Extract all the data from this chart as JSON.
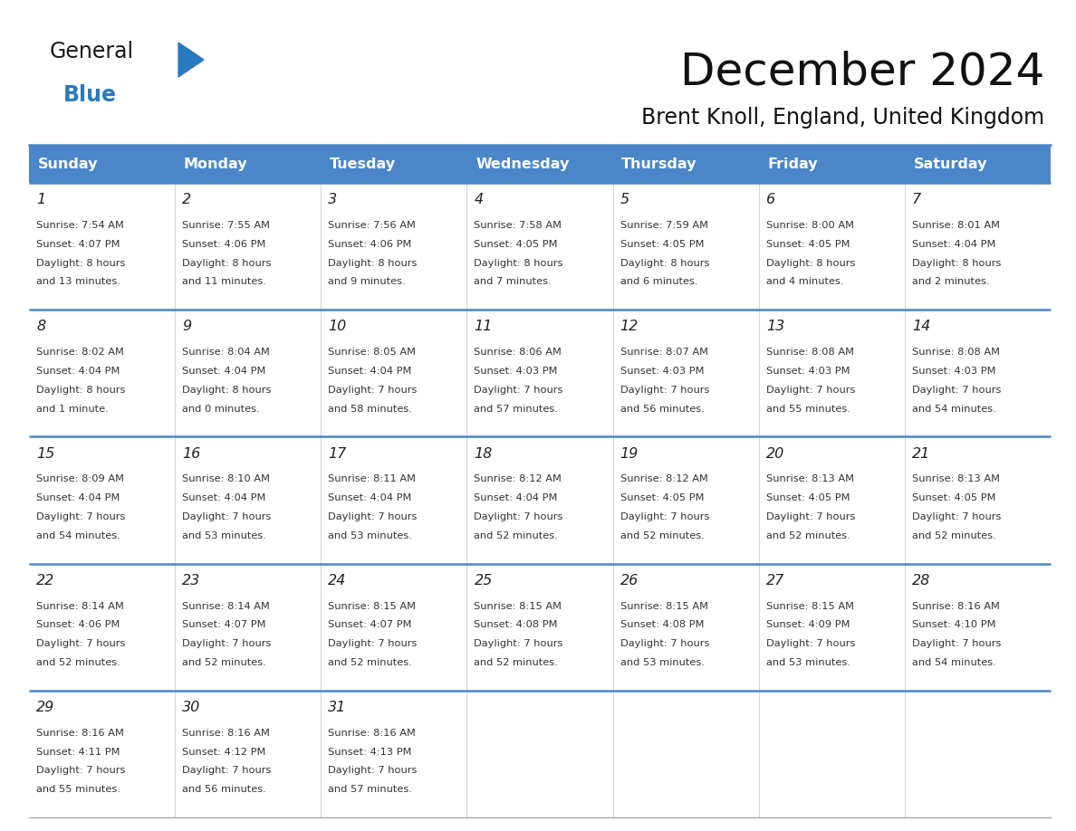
{
  "title": "December 2024",
  "subtitle": "Brent Knoll, England, United Kingdom",
  "header_color": "#4a86c8",
  "header_text_color": "#ffffff",
  "border_color": "#4a86c8",
  "row_border_color": "#4a86c8",
  "cell_bg_even": "#ffffff",
  "cell_bg_odd": "#ffffff",
  "text_color": "#333333",
  "days_of_week": [
    "Sunday",
    "Monday",
    "Tuesday",
    "Wednesday",
    "Thursday",
    "Friday",
    "Saturday"
  ],
  "weeks": [
    [
      {
        "day": 1,
        "sunrise": "7:54 AM",
        "sunset": "4:07 PM",
        "daylight": "8 hours\nand 13 minutes."
      },
      {
        "day": 2,
        "sunrise": "7:55 AM",
        "sunset": "4:06 PM",
        "daylight": "8 hours\nand 11 minutes."
      },
      {
        "day": 3,
        "sunrise": "7:56 AM",
        "sunset": "4:06 PM",
        "daylight": "8 hours\nand 9 minutes."
      },
      {
        "day": 4,
        "sunrise": "7:58 AM",
        "sunset": "4:05 PM",
        "daylight": "8 hours\nand 7 minutes."
      },
      {
        "day": 5,
        "sunrise": "7:59 AM",
        "sunset": "4:05 PM",
        "daylight": "8 hours\nand 6 minutes."
      },
      {
        "day": 6,
        "sunrise": "8:00 AM",
        "sunset": "4:05 PM",
        "daylight": "8 hours\nand 4 minutes."
      },
      {
        "day": 7,
        "sunrise": "8:01 AM",
        "sunset": "4:04 PM",
        "daylight": "8 hours\nand 2 minutes."
      }
    ],
    [
      {
        "day": 8,
        "sunrise": "8:02 AM",
        "sunset": "4:04 PM",
        "daylight": "8 hours\nand 1 minute."
      },
      {
        "day": 9,
        "sunrise": "8:04 AM",
        "sunset": "4:04 PM",
        "daylight": "8 hours\nand 0 minutes."
      },
      {
        "day": 10,
        "sunrise": "8:05 AM",
        "sunset": "4:04 PM",
        "daylight": "7 hours\nand 58 minutes."
      },
      {
        "day": 11,
        "sunrise": "8:06 AM",
        "sunset": "4:03 PM",
        "daylight": "7 hours\nand 57 minutes."
      },
      {
        "day": 12,
        "sunrise": "8:07 AM",
        "sunset": "4:03 PM",
        "daylight": "7 hours\nand 56 minutes."
      },
      {
        "day": 13,
        "sunrise": "8:08 AM",
        "sunset": "4:03 PM",
        "daylight": "7 hours\nand 55 minutes."
      },
      {
        "day": 14,
        "sunrise": "8:08 AM",
        "sunset": "4:03 PM",
        "daylight": "7 hours\nand 54 minutes."
      }
    ],
    [
      {
        "day": 15,
        "sunrise": "8:09 AM",
        "sunset": "4:04 PM",
        "daylight": "7 hours\nand 54 minutes."
      },
      {
        "day": 16,
        "sunrise": "8:10 AM",
        "sunset": "4:04 PM",
        "daylight": "7 hours\nand 53 minutes."
      },
      {
        "day": 17,
        "sunrise": "8:11 AM",
        "sunset": "4:04 PM",
        "daylight": "7 hours\nand 53 minutes."
      },
      {
        "day": 18,
        "sunrise": "8:12 AM",
        "sunset": "4:04 PM",
        "daylight": "7 hours\nand 52 minutes."
      },
      {
        "day": 19,
        "sunrise": "8:12 AM",
        "sunset": "4:05 PM",
        "daylight": "7 hours\nand 52 minutes."
      },
      {
        "day": 20,
        "sunrise": "8:13 AM",
        "sunset": "4:05 PM",
        "daylight": "7 hours\nand 52 minutes."
      },
      {
        "day": 21,
        "sunrise": "8:13 AM",
        "sunset": "4:05 PM",
        "daylight": "7 hours\nand 52 minutes."
      }
    ],
    [
      {
        "day": 22,
        "sunrise": "8:14 AM",
        "sunset": "4:06 PM",
        "daylight": "7 hours\nand 52 minutes."
      },
      {
        "day": 23,
        "sunrise": "8:14 AM",
        "sunset": "4:07 PM",
        "daylight": "7 hours\nand 52 minutes."
      },
      {
        "day": 24,
        "sunrise": "8:15 AM",
        "sunset": "4:07 PM",
        "daylight": "7 hours\nand 52 minutes."
      },
      {
        "day": 25,
        "sunrise": "8:15 AM",
        "sunset": "4:08 PM",
        "daylight": "7 hours\nand 52 minutes."
      },
      {
        "day": 26,
        "sunrise": "8:15 AM",
        "sunset": "4:08 PM",
        "daylight": "7 hours\nand 53 minutes."
      },
      {
        "day": 27,
        "sunrise": "8:15 AM",
        "sunset": "4:09 PM",
        "daylight": "7 hours\nand 53 minutes."
      },
      {
        "day": 28,
        "sunrise": "8:16 AM",
        "sunset": "4:10 PM",
        "daylight": "7 hours\nand 54 minutes."
      }
    ],
    [
      {
        "day": 29,
        "sunrise": "8:16 AM",
        "sunset": "4:11 PM",
        "daylight": "7 hours\nand 55 minutes."
      },
      {
        "day": 30,
        "sunrise": "8:16 AM",
        "sunset": "4:12 PM",
        "daylight": "7 hours\nand 56 minutes."
      },
      {
        "day": 31,
        "sunrise": "8:16 AM",
        "sunset": "4:13 PM",
        "daylight": "7 hours\nand 57 minutes."
      },
      null,
      null,
      null,
      null
    ]
  ],
  "logo_color_general": "#1a1a1a",
  "logo_color_blue": "#2a7abf",
  "logo_triangle_color": "#2a7abf"
}
